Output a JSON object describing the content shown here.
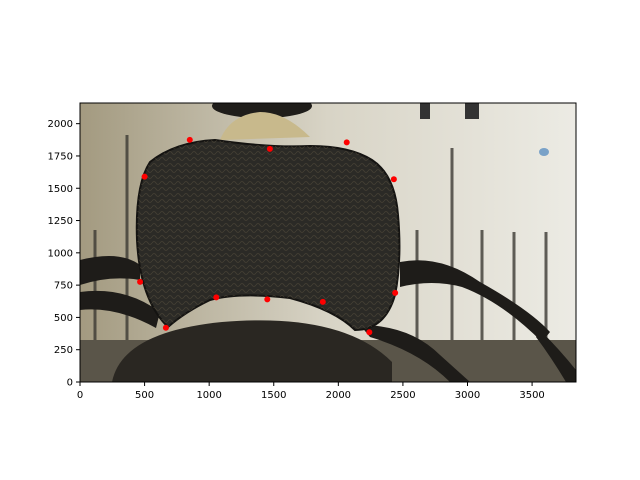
{
  "chart_data": {
    "type": "scatter",
    "title": "",
    "xlabel": "",
    "ylabel": "",
    "xlim": [
      0,
      3840
    ],
    "ylim": [
      0,
      2160
    ],
    "y_inverted": false,
    "grid": false,
    "x_ticks": [
      0,
      500,
      1000,
      1500,
      2000,
      2500,
      3000,
      3500
    ],
    "y_ticks": [
      0,
      250,
      500,
      750,
      1000,
      1250,
      1500,
      1750,
      2000
    ],
    "background": "photo of a dark beetle pronotum with a ruler behind it",
    "series": [
      {
        "color": "#ff0000",
        "marker": "circle",
        "x": [
          850,
          1470,
          2065,
          500,
          2430,
          465,
          1055,
          1450,
          1880,
          2440,
          665,
          2240
        ],
        "y": [
          1875,
          1805,
          1855,
          1590,
          1570,
          775,
          655,
          640,
          620,
          690,
          420,
          385
        ]
      }
    ]
  }
}
